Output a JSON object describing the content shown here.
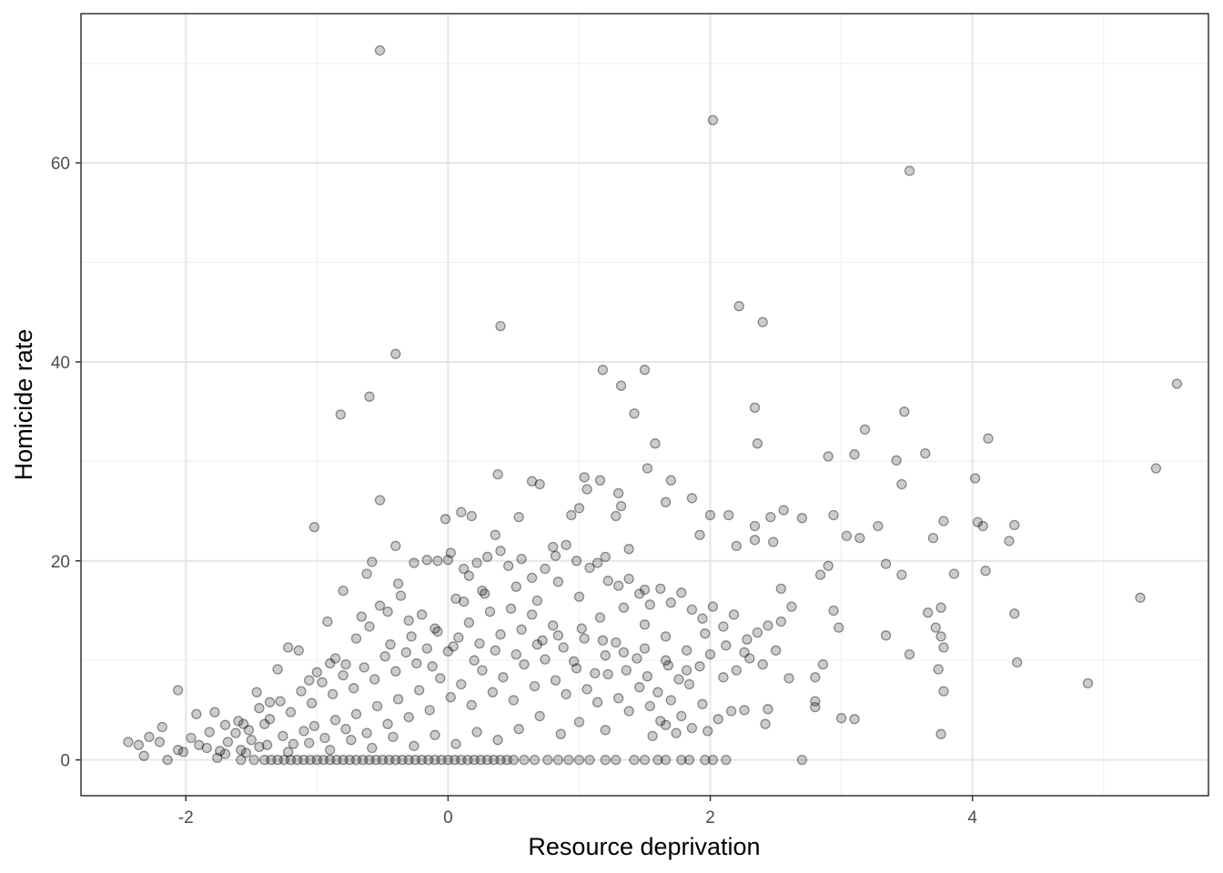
{
  "chart_data": {
    "type": "scatter",
    "xlabel": "Resource deprivation",
    "ylabel": "Homicide rate",
    "xlim": [
      -2.8,
      5.8
    ],
    "ylim": [
      -3.6,
      75
    ],
    "x_ticks": [
      -2,
      0,
      2,
      4
    ],
    "y_ticks": [
      0,
      20,
      40,
      60
    ],
    "x_minor": [
      -1,
      1,
      3,
      5
    ],
    "y_minor": [
      10,
      30,
      50,
      70
    ],
    "x_tick_labels": [
      "-2",
      "0",
      "2",
      "4"
    ],
    "y_tick_labels": [
      "0",
      "20",
      "40",
      "60"
    ],
    "grid": true,
    "point_color": "#000000",
    "point_alpha": 0.2,
    "points": [
      [
        -0.52,
        71.3
      ],
      [
        2.02,
        64.3
      ],
      [
        3.52,
        59.2
      ],
      [
        2.22,
        45.6
      ],
      [
        2.4,
        44.0
      ],
      [
        0.4,
        43.6
      ],
      [
        -0.4,
        40.8
      ],
      [
        1.18,
        39.2
      ],
      [
        1.5,
        39.2
      ],
      [
        5.56,
        37.8
      ],
      [
        1.32,
        37.6
      ],
      [
        -0.6,
        36.5
      ],
      [
        2.34,
        35.4
      ],
      [
        3.48,
        35.0
      ],
      [
        -0.82,
        34.7
      ],
      [
        1.42,
        34.8
      ],
      [
        3.18,
        33.2
      ],
      [
        4.12,
        32.3
      ],
      [
        1.58,
        31.8
      ],
      [
        2.36,
        31.8
      ],
      [
        3.64,
        30.8
      ],
      [
        3.1,
        30.7
      ],
      [
        2.9,
        30.5
      ],
      [
        3.42,
        30.1
      ],
      [
        5.4,
        29.3
      ],
      [
        1.52,
        29.3
      ],
      [
        0.38,
        28.7
      ],
      [
        4.02,
        28.3
      ],
      [
        1.04,
        28.4
      ],
      [
        1.16,
        28.1
      ],
      [
        0.64,
        28.0
      ],
      [
        0.7,
        27.7
      ],
      [
        3.46,
        27.7
      ],
      [
        1.06,
        27.2
      ],
      [
        1.3,
        26.8
      ],
      [
        1.7,
        28.1
      ],
      [
        -0.52,
        26.1
      ],
      [
        1.86,
        26.3
      ],
      [
        0.1,
        24.9
      ],
      [
        2.56,
        25.1
      ],
      [
        1.66,
        25.9
      ],
      [
        1.32,
        25.5
      ],
      [
        1.0,
        25.3
      ],
      [
        0.94,
        24.6
      ],
      [
        0.54,
        24.4
      ],
      [
        0.18,
        24.5
      ],
      [
        -0.02,
        24.2
      ],
      [
        1.28,
        24.5
      ],
      [
        2.0,
        24.6
      ],
      [
        2.14,
        24.6
      ],
      [
        2.46,
        24.4
      ],
      [
        2.7,
        24.3
      ],
      [
        2.94,
        24.6
      ],
      [
        3.78,
        24.0
      ],
      [
        4.04,
        23.9
      ],
      [
        4.08,
        23.5
      ],
      [
        4.32,
        23.6
      ],
      [
        3.28,
        23.5
      ],
      [
        2.34,
        23.5
      ],
      [
        -1.02,
        23.4
      ],
      [
        0.36,
        22.6
      ],
      [
        1.92,
        22.6
      ],
      [
        2.34,
        22.1
      ],
      [
        3.04,
        22.5
      ],
      [
        3.14,
        22.3
      ],
      [
        3.7,
        22.3
      ],
      [
        4.28,
        22.0
      ],
      [
        -0.4,
        21.5
      ],
      [
        0.8,
        21.4
      ],
      [
        1.38,
        21.2
      ],
      [
        2.48,
        21.9
      ],
      [
        2.2,
        21.5
      ],
      [
        4.1,
        19.0
      ],
      [
        3.34,
        19.7
      ],
      [
        2.9,
        19.5
      ],
      [
        3.46,
        18.6
      ],
      [
        3.86,
        18.7
      ],
      [
        -0.58,
        19.9
      ],
      [
        0.0,
        20.1
      ],
      [
        1.2,
        20.4
      ],
      [
        -0.62,
        18.7
      ],
      [
        0.12,
        19.2
      ],
      [
        2.84,
        18.6
      ],
      [
        1.5,
        17.1
      ],
      [
        -0.8,
        17.0
      ],
      [
        -0.38,
        17.7
      ],
      [
        0.26,
        17.0
      ],
      [
        2.54,
        17.2
      ],
      [
        3.76,
        15.3
      ],
      [
        3.66,
        14.8
      ],
      [
        2.62,
        15.4
      ],
      [
        2.94,
        15.0
      ],
      [
        5.28,
        16.3
      ],
      [
        2.54,
        13.9
      ],
      [
        2.98,
        13.3
      ],
      [
        -0.92,
        13.9
      ],
      [
        4.32,
        14.7
      ],
      [
        3.72,
        13.3
      ],
      [
        3.78,
        11.3
      ],
      [
        3.76,
        12.4
      ],
      [
        3.34,
        12.5
      ],
      [
        3.52,
        10.6
      ],
      [
        4.34,
        9.8
      ],
      [
        3.74,
        9.1
      ],
      [
        3.78,
        6.9
      ],
      [
        4.88,
        7.7
      ],
      [
        2.86,
        9.6
      ],
      [
        2.8,
        8.3
      ],
      [
        2.8,
        5.9
      ],
      [
        2.8,
        5.3
      ],
      [
        3.0,
        4.2
      ],
      [
        3.1,
        4.1
      ],
      [
        2.42,
        3.6
      ],
      [
        3.76,
        2.6
      ],
      [
        -2.06,
        7.0
      ],
      [
        -1.92,
        4.6
      ],
      [
        -2.18,
        3.3
      ],
      [
        -2.28,
        2.3
      ],
      [
        -2.36,
        1.5
      ],
      [
        -2.44,
        1.8
      ],
      [
        -2.2,
        1.8
      ],
      [
        -2.32,
        0.4
      ],
      [
        -2.14,
        0.0
      ],
      [
        -2.06,
        1.0
      ],
      [
        -2.02,
        0.8
      ],
      [
        -1.82,
        2.8
      ],
      [
        -1.78,
        4.8
      ],
      [
        -1.7,
        3.5
      ],
      [
        -1.62,
        2.7
      ],
      [
        -1.56,
        3.6
      ],
      [
        -1.5,
        2.0
      ],
      [
        -1.74,
        0.9
      ],
      [
        -1.76,
        0.2
      ],
      [
        -1.44,
        1.3
      ],
      [
        -1.4,
        3.6
      ],
      [
        -1.46,
        6.8
      ],
      [
        -1.36,
        5.8
      ],
      [
        -1.3,
        9.1
      ],
      [
        -1.22,
        11.3
      ],
      [
        -1.14,
        11.0
      ],
      [
        -1.06,
        8.0
      ],
      [
        -1.0,
        8.8
      ],
      [
        -0.9,
        9.7
      ],
      [
        -0.86,
        10.2
      ],
      [
        -0.78,
        9.6
      ],
      [
        -0.7,
        12.2
      ],
      [
        -0.66,
        14.4
      ],
      [
        -0.6,
        13.4
      ],
      [
        -0.52,
        15.5
      ],
      [
        -0.46,
        14.9
      ],
      [
        -0.36,
        16.5
      ],
      [
        -0.3,
        14.0
      ],
      [
        -0.26,
        19.8
      ],
      [
        -0.16,
        20.1
      ],
      [
        -0.08,
        20.0
      ],
      [
        0.02,
        20.8
      ],
      [
        0.06,
        16.2
      ],
      [
        0.16,
        18.5
      ],
      [
        0.22,
        19.8
      ],
      [
        0.3,
        20.4
      ],
      [
        0.4,
        21.0
      ],
      [
        0.46,
        19.5
      ],
      [
        0.56,
        20.2
      ],
      [
        0.64,
        18.3
      ],
      [
        0.74,
        19.2
      ],
      [
        0.82,
        20.5
      ],
      [
        0.9,
        21.6
      ],
      [
        0.98,
        20.0
      ],
      [
        1.08,
        19.3
      ],
      [
        1.14,
        19.8
      ],
      [
        1.22,
        18.0
      ],
      [
        1.3,
        17.5
      ],
      [
        1.38,
        18.2
      ],
      [
        1.46,
        16.7
      ],
      [
        1.54,
        15.6
      ],
      [
        1.62,
        17.2
      ],
      [
        1.7,
        15.8
      ],
      [
        1.78,
        16.8
      ],
      [
        1.86,
        15.1
      ],
      [
        1.94,
        14.2
      ],
      [
        2.02,
        15.4
      ],
      [
        2.1,
        13.4
      ],
      [
        2.18,
        14.6
      ],
      [
        2.28,
        12.1
      ],
      [
        2.36,
        12.8
      ],
      [
        2.44,
        13.5
      ],
      [
        2.3,
        10.2
      ],
      [
        2.2,
        9.0
      ],
      [
        2.1,
        8.3
      ],
      [
        2.0,
        10.6
      ],
      [
        1.92,
        9.4
      ],
      [
        1.84,
        7.6
      ],
      [
        1.76,
        8.1
      ],
      [
        1.68,
        9.5
      ],
      [
        1.6,
        6.8
      ],
      [
        1.52,
        8.4
      ],
      [
        1.44,
        10.2
      ],
      [
        1.36,
        9.0
      ],
      [
        1.28,
        11.8
      ],
      [
        1.2,
        10.5
      ],
      [
        1.12,
        8.7
      ],
      [
        1.04,
        12.2
      ],
      [
        0.96,
        9.9
      ],
      [
        0.88,
        11.3
      ],
      [
        0.8,
        13.5
      ],
      [
        0.72,
        12.0
      ],
      [
        0.64,
        14.6
      ],
      [
        0.56,
        13.1
      ],
      [
        0.48,
        15.2
      ],
      [
        0.4,
        12.6
      ],
      [
        0.32,
        14.9
      ],
      [
        0.24,
        11.7
      ],
      [
        0.16,
        13.8
      ],
      [
        0.08,
        12.3
      ],
      [
        0.0,
        10.9
      ],
      [
        -0.08,
        12.9
      ],
      [
        -0.16,
        11.2
      ],
      [
        -0.24,
        9.7
      ],
      [
        -0.32,
        10.8
      ],
      [
        -0.4,
        8.9
      ],
      [
        -0.48,
        10.4
      ],
      [
        -0.56,
        8.1
      ],
      [
        -0.64,
        9.3
      ],
      [
        -0.72,
        7.2
      ],
      [
        -0.8,
        8.5
      ],
      [
        -0.88,
        6.6
      ],
      [
        -0.96,
        7.8
      ],
      [
        -1.04,
        5.7
      ],
      [
        -1.12,
        6.9
      ],
      [
        -1.2,
        4.8
      ],
      [
        -1.28,
        5.9
      ],
      [
        -1.36,
        4.1
      ],
      [
        -1.44,
        5.2
      ],
      [
        -1.52,
        3.0
      ],
      [
        -1.6,
        3.9
      ],
      [
        -1.68,
        1.8
      ],
      [
        -1.9,
        1.5
      ],
      [
        -1.96,
        2.2
      ],
      [
        -1.84,
        1.2
      ],
      [
        -1.7,
        0.6
      ],
      [
        -1.58,
        1.0
      ],
      [
        -1.26,
        2.4
      ],
      [
        -1.18,
        1.6
      ],
      [
        -1.1,
        2.9
      ],
      [
        -1.02,
        3.4
      ],
      [
        -0.94,
        2.2
      ],
      [
        -0.86,
        4.0
      ],
      [
        -0.78,
        3.1
      ],
      [
        -0.7,
        4.6
      ],
      [
        -0.62,
        2.7
      ],
      [
        -0.54,
        5.4
      ],
      [
        -0.46,
        3.6
      ],
      [
        -0.38,
        6.1
      ],
      [
        -0.3,
        4.3
      ],
      [
        -0.22,
        7.0
      ],
      [
        -0.14,
        5.0
      ],
      [
        -0.06,
        8.2
      ],
      [
        0.02,
        6.3
      ],
      [
        0.1,
        7.6
      ],
      [
        0.18,
        5.5
      ],
      [
        0.26,
        9.0
      ],
      [
        0.34,
        6.8
      ],
      [
        0.42,
        8.3
      ],
      [
        0.5,
        6.0
      ],
      [
        0.58,
        9.6
      ],
      [
        0.66,
        7.4
      ],
      [
        0.74,
        10.1
      ],
      [
        0.82,
        8.0
      ],
      [
        0.9,
        6.6
      ],
      [
        0.98,
        9.2
      ],
      [
        1.06,
        7.1
      ],
      [
        1.14,
        5.8
      ],
      [
        1.22,
        8.6
      ],
      [
        1.3,
        6.2
      ],
      [
        1.38,
        4.9
      ],
      [
        1.46,
        7.3
      ],
      [
        1.54,
        5.4
      ],
      [
        1.62,
        3.9
      ],
      [
        1.7,
        6.0
      ],
      [
        1.78,
        4.4
      ],
      [
        1.86,
        3.2
      ],
      [
        1.94,
        5.6
      ],
      [
        1.98,
        2.9
      ],
      [
        2.06,
        4.1
      ],
      [
        2.16,
        4.9
      ],
      [
        2.26,
        5.0
      ],
      [
        2.44,
        5.1
      ],
      [
        1.56,
        2.4
      ],
      [
        1.66,
        3.5
      ],
      [
        1.74,
        2.7
      ],
      [
        1.2,
        3.0
      ],
      [
        1.0,
        3.8
      ],
      [
        0.86,
        2.6
      ],
      [
        0.7,
        4.4
      ],
      [
        0.54,
        3.1
      ],
      [
        0.38,
        2.0
      ],
      [
        0.22,
        2.8
      ],
      [
        0.06,
        1.6
      ],
      [
        -0.1,
        2.5
      ],
      [
        -0.26,
        1.4
      ],
      [
        -0.42,
        2.3
      ],
      [
        -0.58,
        1.2
      ],
      [
        -0.74,
        2.0
      ],
      [
        -0.9,
        1.0
      ],
      [
        -1.06,
        1.7
      ],
      [
        -1.22,
        0.8
      ],
      [
        -1.38,
        1.5
      ],
      [
        -1.54,
        0.7
      ],
      [
        -0.2,
        14.6
      ],
      [
        -0.1,
        13.2
      ],
      [
        0.12,
        15.9
      ],
      [
        0.28,
        16.7
      ],
      [
        0.52,
        17.4
      ],
      [
        0.68,
        16.0
      ],
      [
        0.84,
        17.9
      ],
      [
        1.0,
        16.4
      ],
      [
        1.16,
        14.3
      ],
      [
        1.34,
        15.3
      ],
      [
        1.5,
        13.6
      ],
      [
        1.66,
        12.4
      ],
      [
        1.82,
        11.0
      ],
      [
        1.96,
        12.7
      ],
      [
        2.12,
        11.5
      ],
      [
        2.26,
        10.8
      ],
      [
        2.4,
        9.6
      ],
      [
        2.5,
        11.0
      ],
      [
        2.6,
        8.2
      ],
      [
        -0.44,
        11.6
      ],
      [
        -0.28,
        12.4
      ],
      [
        -0.12,
        9.4
      ],
      [
        0.04,
        11.4
      ],
      [
        0.2,
        10.0
      ],
      [
        0.36,
        11.0
      ],
      [
        0.52,
        10.6
      ],
      [
        0.68,
        11.6
      ],
      [
        0.84,
        12.5
      ],
      [
        1.02,
        13.2
      ],
      [
        1.18,
        12.0
      ],
      [
        1.34,
        10.8
      ],
      [
        1.5,
        11.2
      ],
      [
        1.66,
        10.0
      ],
      [
        1.82,
        9.0
      ],
      [
        -1.3,
        0.0
      ],
      [
        -1.25,
        0.0
      ],
      [
        -1.2,
        0.0
      ],
      [
        -1.15,
        0.0
      ],
      [
        -1.1,
        0.0
      ],
      [
        -1.05,
        0.0
      ],
      [
        -1.0,
        0.0
      ],
      [
        -0.95,
        0.0
      ],
      [
        -0.9,
        0.0
      ],
      [
        -0.85,
        0.0
      ],
      [
        -0.8,
        0.0
      ],
      [
        -0.75,
        0.0
      ],
      [
        -0.7,
        0.0
      ],
      [
        -0.65,
        0.0
      ],
      [
        -0.6,
        0.0
      ],
      [
        -0.55,
        0.0
      ],
      [
        -0.5,
        0.0
      ],
      [
        -0.45,
        0.0
      ],
      [
        -0.4,
        0.0
      ],
      [
        -0.35,
        0.0
      ],
      [
        -0.3,
        0.0
      ],
      [
        -0.25,
        0.0
      ],
      [
        -0.2,
        0.0
      ],
      [
        -0.15,
        0.0
      ],
      [
        -0.1,
        0.0
      ],
      [
        -0.05,
        0.0
      ],
      [
        0.0,
        0.0
      ],
      [
        0.05,
        0.0
      ],
      [
        0.1,
        0.0
      ],
      [
        0.15,
        0.0
      ],
      [
        0.2,
        0.0
      ],
      [
        0.25,
        0.0
      ],
      [
        0.3,
        0.0
      ],
      [
        0.35,
        0.0
      ],
      [
        0.4,
        0.0
      ],
      [
        0.45,
        0.0
      ],
      [
        -1.58,
        0.0
      ],
      [
        -1.48,
        0.0
      ],
      [
        -1.4,
        0.0
      ],
      [
        -1.35,
        0.0
      ],
      [
        0.5,
        0.0
      ],
      [
        0.58,
        0.0
      ],
      [
        0.66,
        0.0
      ],
      [
        0.76,
        0.0
      ],
      [
        0.84,
        0.0
      ],
      [
        0.92,
        0.0
      ],
      [
        1.0,
        0.0
      ],
      [
        1.08,
        0.0
      ],
      [
        1.2,
        0.0
      ],
      [
        1.28,
        0.0
      ],
      [
        1.42,
        0.0
      ],
      [
        1.5,
        0.0
      ],
      [
        1.6,
        0.0
      ],
      [
        1.66,
        0.0
      ],
      [
        1.78,
        0.0
      ],
      [
        1.84,
        0.0
      ],
      [
        1.96,
        0.0
      ],
      [
        2.02,
        0.0
      ],
      [
        2.12,
        0.0
      ],
      [
        2.7,
        0.0
      ]
    ]
  }
}
